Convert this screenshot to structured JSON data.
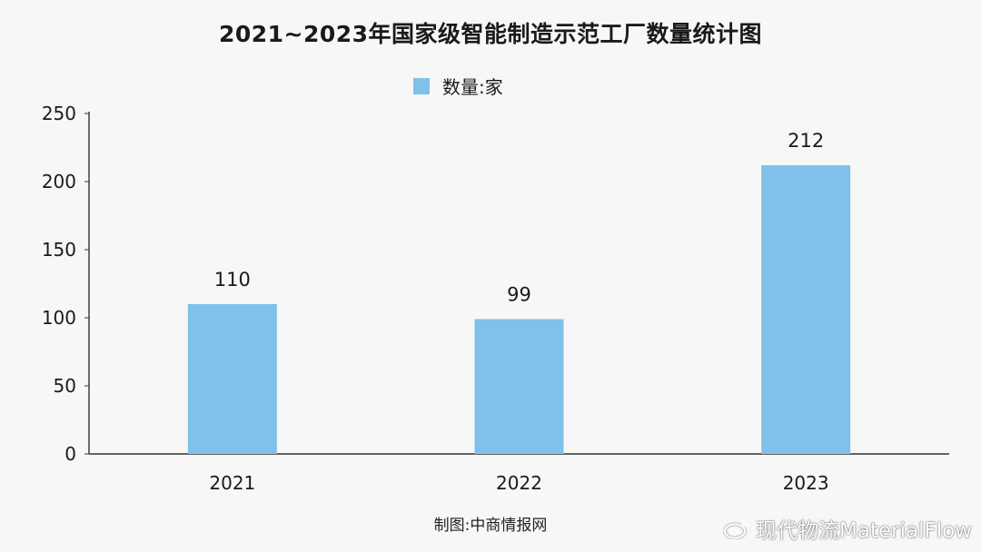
{
  "colors": {
    "bar": "#80c1ea",
    "axis": "#333333",
    "background": "#f7f7f7"
  },
  "legend": {
    "label": "数量:家"
  },
  "caption": "制图:中商情报网",
  "watermark": {
    "text": "现代物流MaterialFlow",
    "icon": "weibo-icon"
  },
  "chart_data": {
    "type": "bar",
    "title": "2021~2023年国家级智能制造示范工厂数量统计图",
    "categories": [
      "2021",
      "2022",
      "2023"
    ],
    "series": [
      {
        "name": "数量:家",
        "values": [
          110,
          99,
          212
        ]
      }
    ],
    "ylim": [
      0,
      250
    ],
    "yticks": [
      0,
      50,
      100,
      150,
      200,
      250
    ],
    "xlabel": "",
    "ylabel": "",
    "grid": false,
    "legend_position": "top-center",
    "data_labels": true
  }
}
